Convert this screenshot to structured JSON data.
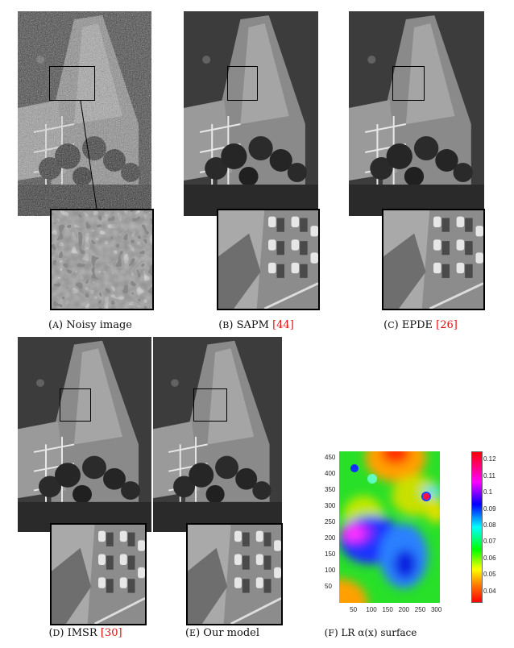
{
  "panels": [
    {
      "id": "a",
      "letter": "A",
      "label": "Noisy image",
      "ref": ""
    },
    {
      "id": "b",
      "letter": "B",
      "label": "SAPM ",
      "ref": "[44]"
    },
    {
      "id": "c",
      "letter": "C",
      "label": "EPDE ",
      "ref": "[26]"
    },
    {
      "id": "d",
      "letter": "D",
      "label": "IMSR ",
      "ref": "[30]"
    },
    {
      "id": "e",
      "letter": "E",
      "label": "Our model",
      "ref": ""
    },
    {
      "id": "f",
      "letter": "F",
      "label": "LR α(x) surface",
      "ref": ""
    }
  ],
  "colors": {
    "reference": "#e01010"
  },
  "chart_data": {
    "type": "heatmap",
    "title": "",
    "x_ticks": [
      "50",
      "100",
      "150",
      "200",
      "250",
      "300"
    ],
    "y_ticks": [
      "50",
      "100",
      "150",
      "200",
      "250",
      "300",
      "350",
      "400",
      "450"
    ],
    "xlim": [
      0,
      310
    ],
    "ylim": [
      0,
      470
    ],
    "colorbar": {
      "ticks": [
        "0.04",
        "0.05",
        "0.06",
        "0.07",
        "0.08",
        "0.09",
        "0.1",
        "0.11",
        "0.12"
      ],
      "range": [
        0.033,
        0.125
      ],
      "colormap": "hsv"
    },
    "features": [
      {
        "x": 175,
        "y": 450,
        "value": 0.035
      },
      {
        "x": 30,
        "y": 210,
        "value": 0.11
      },
      {
        "x": 200,
        "y": 140,
        "value": 0.092
      },
      {
        "x": 265,
        "y": 330,
        "value": 0.12
      },
      {
        "x": 45,
        "y": 400,
        "value": 0.092
      },
      {
        "x": 100,
        "y": 370,
        "value": 0.078
      },
      {
        "x": 10,
        "y": 10,
        "value": 0.04
      }
    ]
  }
}
